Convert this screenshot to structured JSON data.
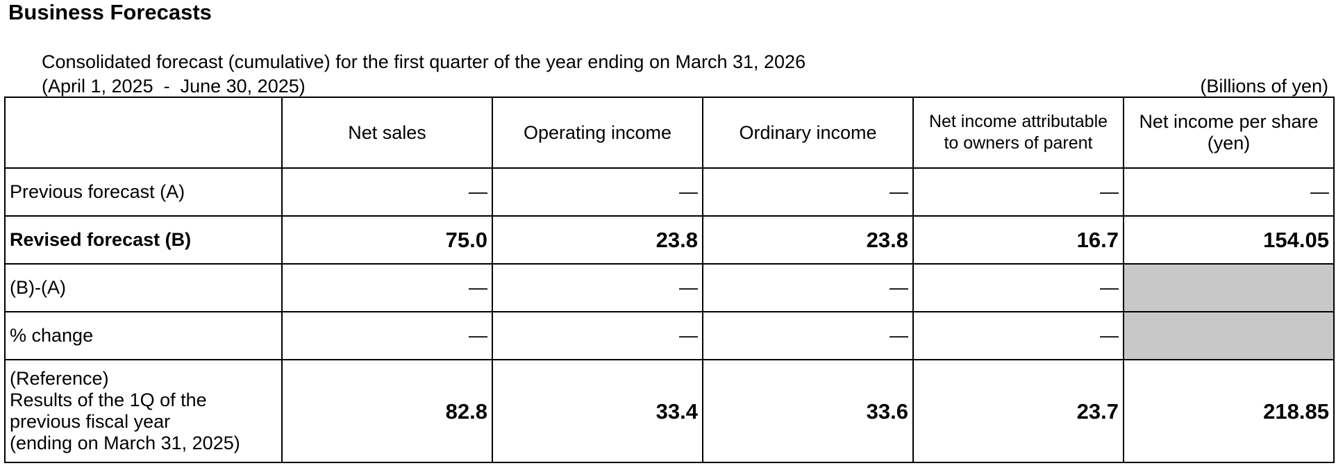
{
  "title": "Business Forecasts",
  "subtitle": "Consolidated forecast (cumulative) for the first quarter of the year ending on March 31, 2026",
  "period": "(April 1, 2025  -  June 30, 2025)",
  "units": "(Billions of yen)",
  "table": {
    "headers": {
      "net_sales": "Net sales",
      "operating_income": "Operating income",
      "ordinary_income": "Ordinary income",
      "net_income_line1": "Net income attributable",
      "net_income_line2": "to owners of parent",
      "eps_line1": "Net income per share",
      "eps_line2": "(yen)"
    },
    "rows": {
      "previous": {
        "label": "Previous forecast (A)",
        "net_sales": "—",
        "operating_income": "—",
        "ordinary_income": "—",
        "net_income": "—",
        "eps": "—"
      },
      "revised": {
        "label": "Revised forecast (B)",
        "net_sales": "75.0",
        "operating_income": "23.8",
        "ordinary_income": "23.8",
        "net_income": "16.7",
        "eps": "154.05"
      },
      "difference": {
        "label": "(B)-(A)",
        "net_sales": "—",
        "operating_income": "—",
        "ordinary_income": "—",
        "net_income": "—"
      },
      "pct_change": {
        "label": "% change",
        "net_sales": "—",
        "operating_income": "—",
        "ordinary_income": "—",
        "net_income": "—"
      },
      "reference": {
        "label_line1": "(Reference)",
        "label_line2": "Results of the 1Q of the",
        "label_line3": "previous fiscal year",
        "label_line4": "(ending on March 31, 2025)",
        "net_sales": "82.8",
        "operating_income": "33.4",
        "ordinary_income": "33.6",
        "net_income": "23.7",
        "eps": "218.85"
      }
    }
  }
}
